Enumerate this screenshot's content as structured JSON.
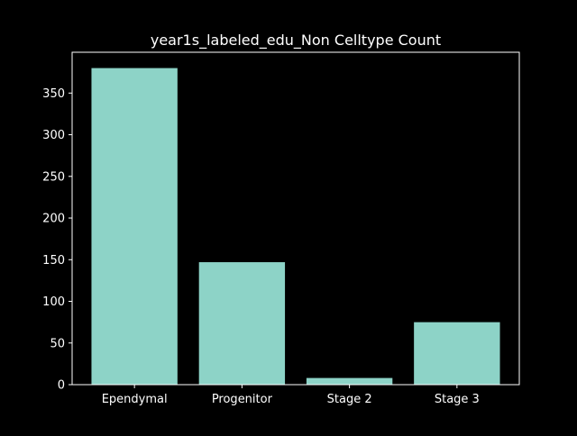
{
  "chart_data": {
    "type": "bar",
    "title": "year1s_labeled_edu_Non Celltype Count",
    "xlabel": "",
    "ylabel": "",
    "categories": [
      "Ependymal",
      "Progenitor",
      "Stage 2",
      "Stage 3"
    ],
    "values": [
      380,
      147,
      8,
      75
    ],
    "ylim": [
      0,
      399
    ],
    "yticks": [
      0,
      50,
      100,
      150,
      200,
      250,
      300,
      350
    ],
    "grid": false,
    "legend": "none",
    "bar_color": "#8dd3c7",
    "background_color": "#000000",
    "axis_color": "#ffffff"
  }
}
